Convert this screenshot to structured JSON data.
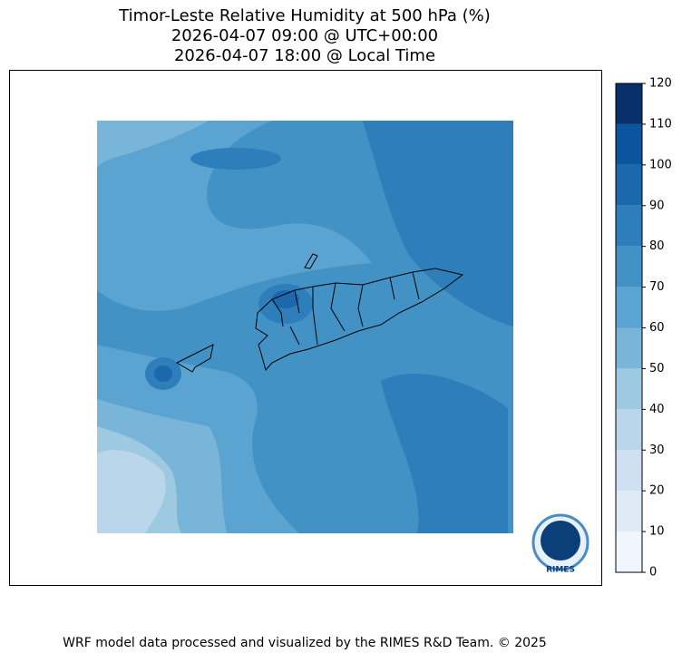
{
  "title": [
    "Timor-Leste Relative Humidity at 500 hPa (%)",
    "2026-04-07 09:00 @ UTC+00:00",
    "2026-04-07 18:00 @ Local Time"
  ],
  "colorbar": {
    "ticks": [
      0,
      10,
      20,
      30,
      40,
      50,
      60,
      70,
      80,
      90,
      100,
      110,
      120
    ],
    "colors": [
      "#f0f6fd",
      "#deebf7",
      "#cfe0f2",
      "#b9d6ea",
      "#9ecae1",
      "#79b5d9",
      "#5ba3d0",
      "#4292c6",
      "#2f7ebc",
      "#1c68ad",
      "#0b549e",
      "#08306b"
    ]
  },
  "logo": "RIMES",
  "footer": "WRF model data processed and visualized by the RIMES R&D Team. © 2025"
}
